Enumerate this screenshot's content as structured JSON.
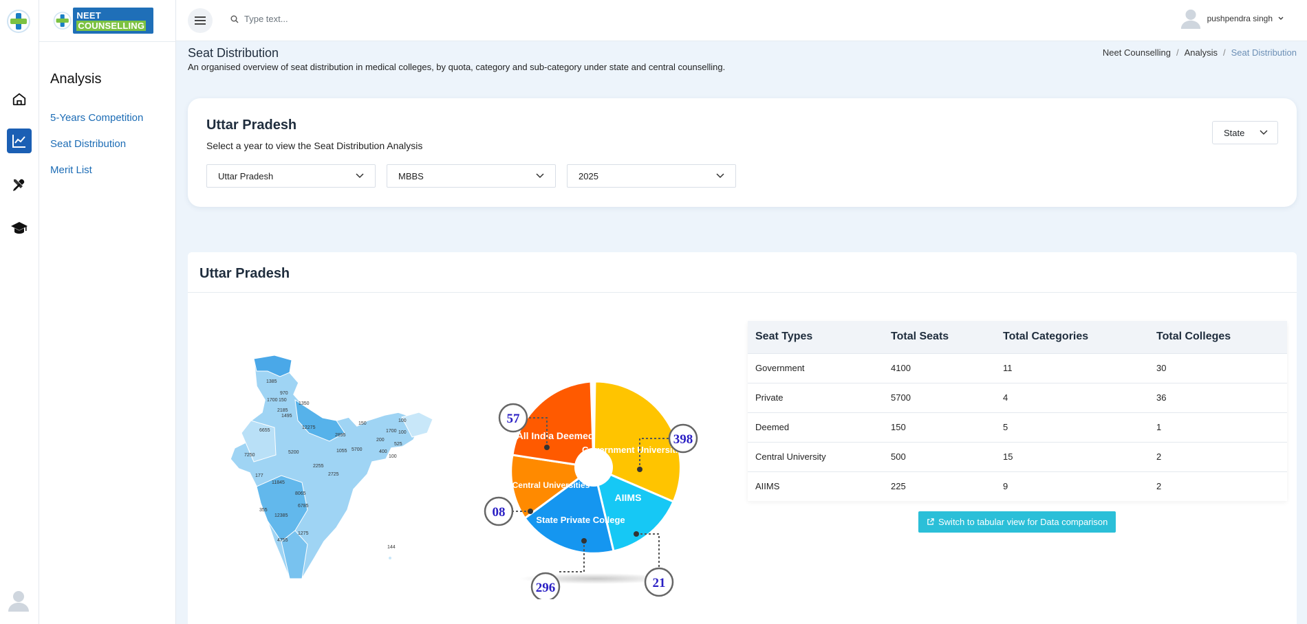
{
  "brand": {
    "name_part1": "NEET",
    "name_part2": "COUNSELLING"
  },
  "topbar": {
    "search_placeholder": "Type text...",
    "user_name": "pushpendra singh"
  },
  "sidebar": {
    "title": "Analysis",
    "items": [
      {
        "label": "5-Years Competition"
      },
      {
        "label": "Seat Distribution"
      },
      {
        "label": "Merit List"
      }
    ]
  },
  "header": {
    "title": "Seat Distribution",
    "subtitle": "An organised overview of seat distribution in medical colleges, by quota, category and sub-category under state and central counselling.",
    "breadcrumb": [
      "Neet Counselling",
      "Analysis",
      "Seat Distribution"
    ]
  },
  "filters": {
    "title": "Uttar Pradesh",
    "subtitle": "Select a year to view the Seat Distribution Analysis",
    "state": "Uttar Pradesh",
    "course": "MBBS",
    "year": "2025",
    "scope": "State"
  },
  "distribution": {
    "title": "Uttar Pradesh",
    "map_values": [
      "1385",
      "970",
      "1700",
      "150",
      "1350",
      "2185",
      "1495",
      "12275",
      "6655",
      "150",
      "100",
      "1700",
      "100",
      "2895",
      "200",
      "525",
      "7250",
      "5200",
      "1055",
      "5700",
      "400",
      "100",
      "2255",
      "2725",
      "177",
      "11845",
      "8065",
      "6785",
      "355",
      "12385",
      "1275",
      "4755",
      "144"
    ],
    "pie_labels": [
      "All India Deemed",
      "Government Universities",
      "Central Universities",
      "AIIMS",
      "State Private College"
    ],
    "callouts": [
      "57",
      "398",
      "08",
      "296",
      "21"
    ],
    "table": {
      "headers": [
        "Seat Types",
        "Total Seats",
        "Total Categories",
        "Total Colleges"
      ],
      "rows": [
        [
          "Government",
          "4100",
          "11",
          "30"
        ],
        [
          "Private",
          "5700",
          "4",
          "36"
        ],
        [
          "Deemed",
          "150",
          "5",
          "1"
        ],
        [
          "Central University",
          "500",
          "15",
          "2"
        ],
        [
          "AIIMS",
          "225",
          "9",
          "2"
        ]
      ]
    },
    "switch_label": "Switch to tabular view for Data comparison"
  },
  "colors": {
    "accent": "#1c6cb5",
    "cyan": "#2bbfd8",
    "map": "#7fc4ef"
  }
}
